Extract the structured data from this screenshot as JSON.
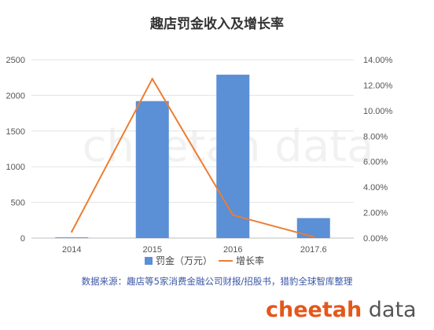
{
  "chart_data": {
    "type": "bar",
    "title": "趣店罚金收入及增长率",
    "categories": [
      "2014",
      "2015",
      "2016",
      "2017.6"
    ],
    "series": [
      {
        "name": "罚金（万元）",
        "type": "bar",
        "axis": "left",
        "color": "#5b8fd6",
        "values": [
          10,
          1920,
          2290,
          280
        ]
      },
      {
        "name": "增长率",
        "type": "line",
        "axis": "right",
        "color": "#ed7d31",
        "values": [
          0.5,
          12.5,
          1.8,
          0.1
        ]
      }
    ],
    "y_left": {
      "min": 0,
      "max": 2500,
      "ticks": [
        "0",
        "500",
        "1000",
        "1500",
        "2000",
        "2500"
      ]
    },
    "y_right": {
      "min": 0,
      "max": 14,
      "ticks": [
        "0.00%",
        "2.00%",
        "4.00%",
        "6.00%",
        "8.00%",
        "10.00%",
        "12.00%",
        "14.00%"
      ]
    },
    "grid": true,
    "legend_position": "bottom"
  },
  "source_note": "数据来源：趣店等5家消费金融公司财报/招股书，猎豹全球智库整理",
  "watermark_text": "cheetah data",
  "brand": {
    "part1": "cheetah",
    "part2": " data"
  }
}
